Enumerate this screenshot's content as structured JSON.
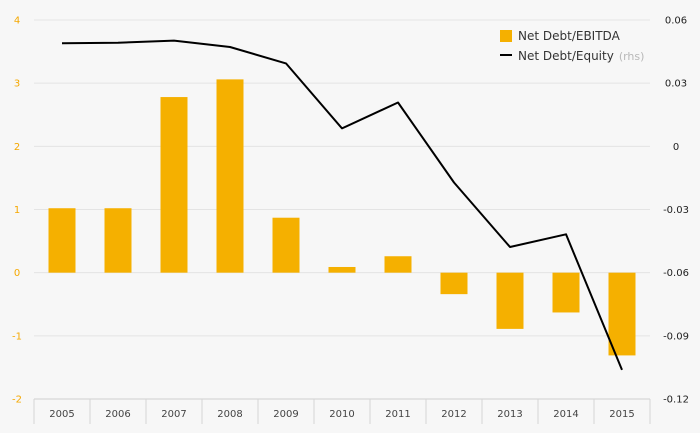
{
  "chart_data": {
    "type": "bar+line",
    "categories": [
      "2005",
      "2006",
      "2007",
      "2008",
      "2009",
      "2010",
      "2011",
      "2012",
      "2013",
      "2014",
      "2015"
    ],
    "series": [
      {
        "name": "Net Debt/EBITDA",
        "type": "bar",
        "axis": "left",
        "color": "#f5b000",
        "values": [
          1.02,
          1.02,
          2.78,
          3.06,
          0.87,
          0.09,
          0.26,
          -0.34,
          -0.89,
          -0.63,
          -1.31
        ]
      },
      {
        "name": "Net Debt/Equity",
        "name_suffix": "(rhs)",
        "type": "line",
        "axis": "right",
        "color": "#000000",
        "values": [
          0.049,
          0.0492,
          0.0502,
          0.0472,
          0.0394,
          0.0085,
          0.0208,
          -0.0172,
          -0.0478,
          -0.0418,
          -0.1062
        ]
      }
    ],
    "y_left": {
      "range": [
        -2,
        4
      ],
      "ticks": [
        4,
        3,
        2,
        1,
        0,
        -1,
        -2
      ],
      "tick_labels": [
        "4",
        "3",
        "2",
        "1",
        "0",
        "-1",
        "-2"
      ]
    },
    "y_right": {
      "range": [
        -0.12,
        0.06
      ],
      "ticks": [
        0.06,
        0.03,
        0,
        -0.03,
        -0.06,
        -0.09,
        -0.12
      ],
      "tick_labels": [
        "0.06",
        "0.03",
        "0",
        "-0.03",
        "-0.06",
        "-0.09",
        "-0.12"
      ]
    },
    "grid": true,
    "legend": "top-right",
    "colors": {
      "background": "#f7f7f7",
      "grid": "#e4e4e4",
      "left_axis_text": "#f5a800",
      "right_axis_text": "#222222"
    }
  }
}
